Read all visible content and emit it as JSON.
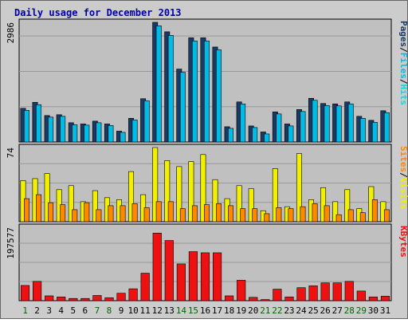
{
  "chart_data": {
    "type": "bar",
    "title": "Daily usage for December 2013",
    "categories": [
      "1",
      "2",
      "3",
      "4",
      "5",
      "6",
      "7",
      "8",
      "9",
      "10",
      "11",
      "12",
      "13",
      "14",
      "15",
      "16",
      "17",
      "18",
      "19",
      "20",
      "21",
      "22",
      "23",
      "24",
      "25",
      "26",
      "27",
      "28",
      "29",
      "30",
      "31"
    ],
    "weekend_days": [
      "1",
      "7",
      "8",
      "14",
      "15",
      "21",
      "22",
      "28",
      "29"
    ],
    "panels": [
      {
        "id": "hits",
        "ymax_label": "2986",
        "ylim": [
          0,
          2986
        ],
        "side_label": [
          "Pages",
          "/",
          "Files",
          "/",
          "Hits"
        ],
        "series": [
          {
            "name": "Pages",
            "color": "#1a3a66",
            "values": [
              840,
              990,
              660,
              680,
              480,
              450,
              520,
              450,
              270,
              590,
              1080,
              2986,
              2750,
              1820,
              2600,
              2600,
              2370,
              380,
              1000,
              400,
              250,
              750,
              450,
              810,
              1090,
              960,
              950,
              1000,
              640,
              540,
              780
            ]
          },
          {
            "name": "Files",
            "color": "#00bbe6",
            "values": [
              790,
              930,
              620,
              640,
              430,
              420,
              480,
              410,
              240,
              550,
              1030,
              2900,
              2660,
              1740,
              2520,
              2520,
              2300,
              340,
              950,
              360,
              200,
              700,
              400,
              760,
              1040,
              910,
              900,
              950,
              590,
              490,
              730
            ]
          },
          {
            "name": "Hits",
            "color": "#00e0e0",
            "values": [
              0
            ]
          }
        ]
      },
      {
        "id": "visits",
        "ymax_label": "74",
        "ylim": [
          0,
          74
        ],
        "side_label": [
          "Sites",
          "/",
          "Visits"
        ],
        "series": [
          {
            "name": "Visits",
            "color": "#f0f000",
            "values": [
              41,
              43,
              48,
              32,
              36,
              20,
              31,
              24,
              22,
              50,
              27,
              74,
              61,
              55,
              60,
              67,
              42,
              23,
              36,
              33,
              11,
              53,
              15,
              68,
              22,
              34,
              20,
              32,
              13,
              35,
              20
            ]
          },
          {
            "name": "Sites",
            "color": "#ff8800",
            "values": [
              23,
              27,
              19,
              17,
              12,
              19,
              12,
              16,
              16,
              18,
              14,
              20,
              20,
              13,
              16,
              17,
              18,
              16,
              13,
              13,
              8,
              14,
              13,
              15,
              18,
              16,
              7,
              12,
              9,
              22,
              12
            ]
          }
        ]
      },
      {
        "id": "kbytes",
        "ymax_label": "197577",
        "ylim": [
          0,
          197577
        ],
        "side_label": [
          "KBytes"
        ],
        "series": [
          {
            "name": "KBytes",
            "color": "#ee1111",
            "values": [
              41000,
              52000,
              13000,
              10000,
              6000,
              6000,
              14000,
              8000,
              20000,
              32000,
              74000,
              182000,
              162000,
              99000,
              132000,
              129000,
              129000,
              13000,
              55000,
              9000,
              3000,
              31000,
              10000,
              35000,
              40000,
              48000,
              48000,
              52000,
              26000,
              10000,
              12000
            ]
          }
        ]
      }
    ],
    "colors": {
      "background": "#cccccc",
      "plot_background": "#c0c0c0",
      "title": "#0000aa",
      "axis_text": "#000000",
      "weekend_text": "#006600",
      "gridline": "#999999",
      "border": "#000000",
      "pages": "#1a3a66",
      "files": "#00bbe6",
      "hits": "#00e0e0",
      "visits": "#f0f000",
      "sites": "#ff8800",
      "kbytes": "#ee1111"
    }
  }
}
